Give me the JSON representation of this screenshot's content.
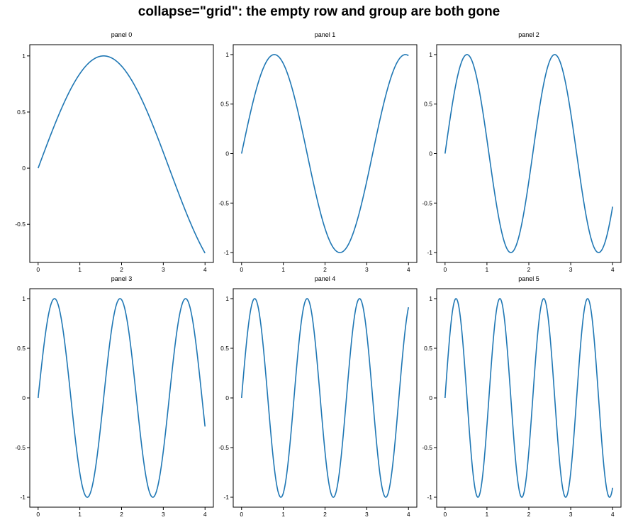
{
  "figure_title": "collapse=\"grid\": the empty row and group are both gone",
  "line_color": "#1f77b4",
  "chart_data": [
    {
      "type": "line",
      "title": "panel 0",
      "freq": 1.0,
      "x": [
        0,
        4
      ],
      "xlim": [
        -0.2,
        4.2
      ],
      "ylim": [
        -0.84,
        1.1
      ],
      "xticks": [
        0,
        1,
        2,
        3,
        4
      ],
      "yticks": [
        -0.5,
        0,
        0.5,
        1
      ],
      "ytick_labels": [
        "-0.5",
        "0",
        "0.5",
        "1"
      ],
      "grid": false
    },
    {
      "type": "line",
      "title": "panel 1",
      "freq": 2.0,
      "x": [
        0,
        4
      ],
      "xlim": [
        -0.2,
        4.2
      ],
      "ylim": [
        -1.1,
        1.1
      ],
      "xticks": [
        0,
        1,
        2,
        3,
        4
      ],
      "yticks": [
        -1,
        -0.5,
        0,
        0.5,
        1
      ],
      "ytick_labels": [
        "-1",
        "-0.5",
        "0",
        "0.5",
        "1"
      ],
      "grid": false
    },
    {
      "type": "line",
      "title": "panel 2",
      "freq": 3.0,
      "x": [
        0,
        4
      ],
      "xlim": [
        -0.2,
        4.2
      ],
      "ylim": [
        -1.1,
        1.1
      ],
      "xticks": [
        0,
        1,
        2,
        3,
        4
      ],
      "yticks": [
        -1,
        -0.5,
        0,
        0.5,
        1
      ],
      "ytick_labels": [
        "-1",
        "-0.5",
        "0",
        "0.5",
        "1"
      ],
      "grid": false
    },
    {
      "type": "line",
      "title": "panel 3",
      "freq": 4.0,
      "x": [
        0,
        4
      ],
      "xlim": [
        -0.2,
        4.2
      ],
      "ylim": [
        -1.1,
        1.1
      ],
      "xticks": [
        0,
        1,
        2,
        3,
        4
      ],
      "yticks": [
        -1,
        -0.5,
        0,
        0.5,
        1
      ],
      "ytick_labels": [
        "-1",
        "-0.5",
        "0",
        "0.5",
        "1"
      ],
      "grid": false
    },
    {
      "type": "line",
      "title": "panel 4",
      "freq": 5.0,
      "x": [
        0,
        4
      ],
      "xlim": [
        -0.2,
        4.2
      ],
      "ylim": [
        -1.1,
        1.1
      ],
      "xticks": [
        0,
        1,
        2,
        3,
        4
      ],
      "yticks": [
        -1,
        -0.5,
        0,
        0.5,
        1
      ],
      "ytick_labels": [
        "-1",
        "-0.5",
        "0",
        "0.5",
        "1"
      ],
      "grid": false
    },
    {
      "type": "line",
      "title": "panel 5",
      "freq": 6.0,
      "x": [
        0,
        4
      ],
      "xlim": [
        -0.2,
        4.2
      ],
      "ylim": [
        -1.1,
        1.1
      ],
      "xticks": [
        0,
        1,
        2,
        3,
        4
      ],
      "yticks": [
        -1,
        -0.5,
        0,
        0.5,
        1
      ],
      "ytick_labels": [
        "-1",
        "-0.5",
        "0",
        "0.5",
        "1"
      ],
      "grid": false
    }
  ]
}
